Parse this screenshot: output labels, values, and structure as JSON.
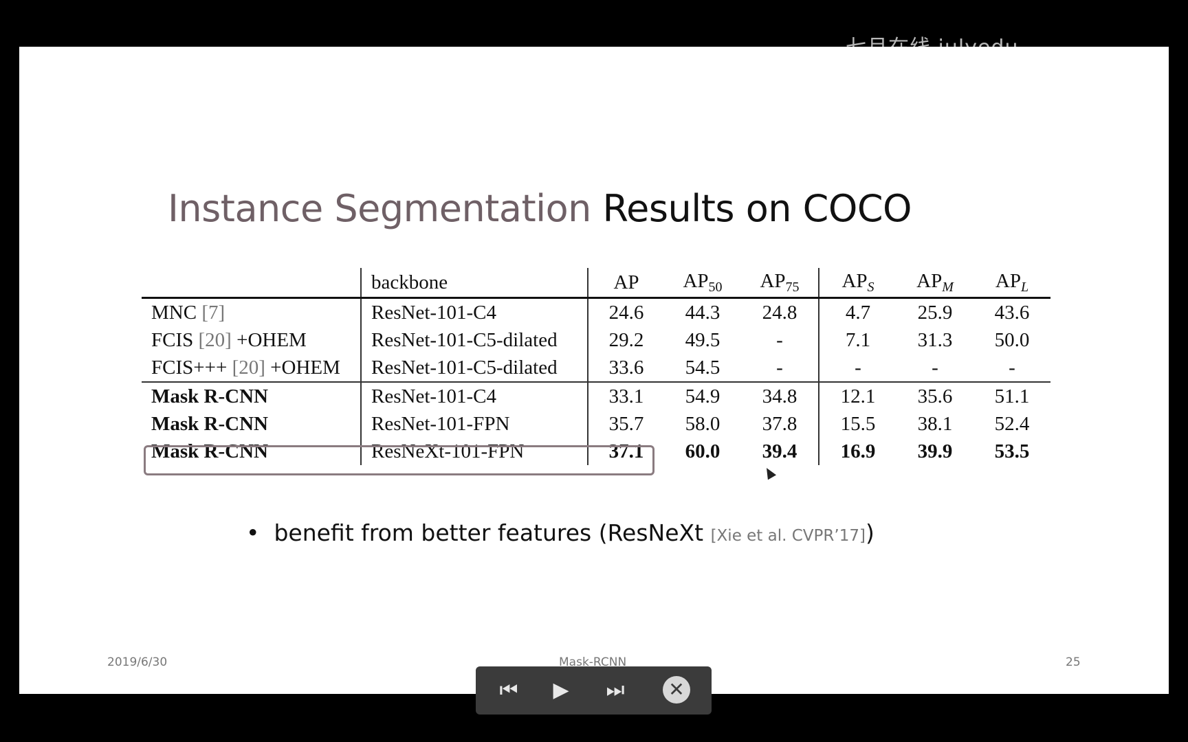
{
  "watermark": "七月在线 julyedu",
  "slide": {
    "title_part1": "Instance Segmentation",
    "title_part2": " Results on COCO",
    "table": {
      "headers": [
        "backbone",
        "AP"
      ],
      "rows": [
        {
          "method": "MNC",
          "ref": "[7]",
          "extra": "",
          "backbone": "ResNet-101-C4",
          "values": [
            "24.6",
            "44.3",
            "24.8",
            "4.7",
            "25.9",
            "43.6"
          ]
        },
        {
          "method": "FCIS",
          "ref": "[20]",
          "extra": " +OHEM",
          "backbone": "ResNet-101-C5-dilated",
          "values": [
            "29.2",
            "49.5",
            "-",
            "7.1",
            "31.3",
            "50.0"
          ]
        },
        {
          "method": "FCIS+++",
          "ref": "[20]",
          "extra": " +OHEM",
          "backbone": "ResNet-101-C5-dilated",
          "values": [
            "33.6",
            "54.5",
            "-",
            "-",
            "-",
            "-"
          ]
        },
        {
          "method": "Mask R-CNN",
          "ref": "",
          "extra": "",
          "backbone": "ResNet-101-C4",
          "values": [
            "33.1",
            "54.9",
            "34.8",
            "12.1",
            "35.6",
            "51.1"
          ]
        },
        {
          "method": "Mask R-CNN",
          "ref": "",
          "extra": "",
          "backbone": "ResNet-101-FPN",
          "values": [
            "35.7",
            "58.0",
            "37.8",
            "15.5",
            "38.1",
            "52.4"
          ]
        },
        {
          "method": "Mask R-CNN",
          "ref": "",
          "extra": "",
          "backbone": "ResNeXt-101-FPN",
          "values": [
            "37.1",
            "60.0",
            "39.4",
            "16.9",
            "39.9",
            "53.5"
          ]
        }
      ]
    },
    "bullet_main": "benefit from better features (ResNeXt ",
    "bullet_cite": "[Xie et al. CVPR’17]",
    "bullet_close": ")",
    "footer_date": "2019/6/30",
    "footer_title": "Mask-RCNN",
    "footer_page": "25"
  },
  "controls": {
    "prev": "⏮",
    "play": "▶",
    "next": "⏭",
    "close": "✕"
  }
}
